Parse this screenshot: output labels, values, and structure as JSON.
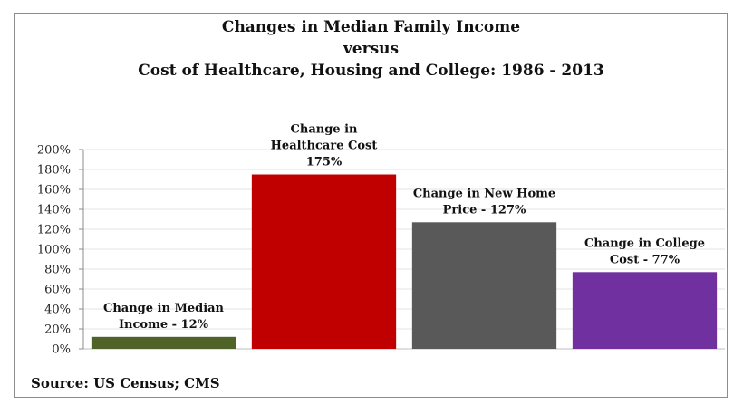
{
  "title": {
    "line1": "Changes in Median Family Income",
    "line2": "versus",
    "line3": "Cost of Healthcare, Housing and College: 1986 - 2013"
  },
  "source": "Source:  US Census; CMS",
  "chart_data": {
    "type": "bar",
    "title": "Changes in Median Family Income versus Cost of Healthcare, Housing and College: 1986 - 2013",
    "categories": [
      "Change in Median Income",
      "Change in Healthcare Cost",
      "Change in New Home Price",
      "Change in College Cost"
    ],
    "values": [
      12,
      175,
      127,
      77
    ],
    "unit": "%",
    "ylim": [
      0,
      200
    ],
    "yticks": [
      0,
      20,
      40,
      60,
      80,
      100,
      120,
      140,
      160,
      180,
      200
    ],
    "ytick_labels": [
      "0%",
      "20%",
      "40%",
      "60%",
      "80%",
      "100%",
      "120%",
      "140%",
      "160%",
      "180%",
      "200%"
    ],
    "grid": true,
    "legend": "none",
    "colors": [
      "#4f6228",
      "#c00000",
      "#595959",
      "#7030a0"
    ],
    "data_labels": [
      [
        "Change in Median",
        "Income - 12%"
      ],
      [
        "Change in",
        "Healthcare Cost",
        "175%"
      ],
      [
        "Change in New Home",
        "Price - 127%"
      ],
      [
        "Change in College",
        "Cost - 77%"
      ]
    ],
    "xlabel": "",
    "ylabel": ""
  }
}
